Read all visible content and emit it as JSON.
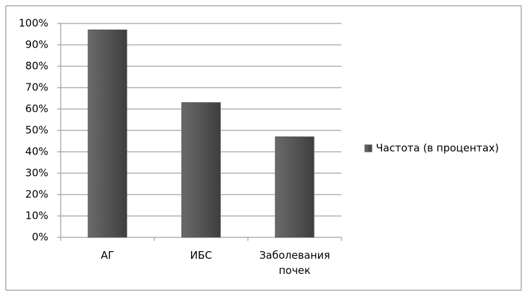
{
  "chart_data": {
    "type": "bar",
    "categories": [
      "АГ",
      "ИБС",
      "Заболевания почек"
    ],
    "series": [
      {
        "name": "Частота (в процентах)",
        "color": "#555555",
        "values": [
          97,
          63,
          47
        ]
      }
    ],
    "ylim": [
      0,
      100
    ],
    "yticks": [
      {
        "value": 0,
        "label": "0%"
      },
      {
        "value": 10,
        "label": "10%"
      },
      {
        "value": 20,
        "label": "20%"
      },
      {
        "value": 30,
        "label": "30%"
      },
      {
        "value": 40,
        "label": "40%"
      },
      {
        "value": 50,
        "label": "50%"
      },
      {
        "value": 60,
        "label": "60%"
      },
      {
        "value": 70,
        "label": "70%"
      },
      {
        "value": 80,
        "label": "80%"
      },
      {
        "value": 90,
        "label": "90%"
      },
      {
        "value": 100,
        "label": "100%"
      }
    ],
    "grid": true,
    "legend": "right"
  }
}
